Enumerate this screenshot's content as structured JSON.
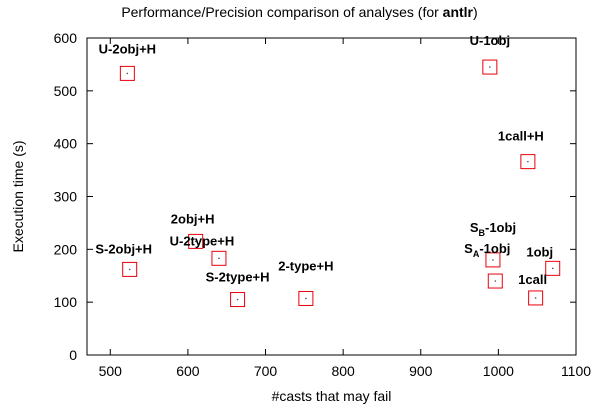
{
  "chart_data": {
    "type": "scatter",
    "title_prefix": "Performance/Precision comparison of analyses (for ",
    "title_bold": "antlr",
    "title_suffix": ")",
    "xlabel": "#casts that may fail",
    "ylabel": "Execution time (s)",
    "xlim": [
      470,
      1100
    ],
    "ylim": [
      0,
      600
    ],
    "xticks": [
      500,
      600,
      700,
      800,
      900,
      1000,
      1100
    ],
    "yticks": [
      0,
      100,
      200,
      300,
      400,
      500,
      600
    ],
    "grid": false,
    "marker_color": "#e8000b",
    "points": [
      {
        "label": "U-2obj+H",
        "x": 522,
        "y": 533
      },
      {
        "label": "S-2obj+H",
        "x": 525,
        "y": 162
      },
      {
        "label": "2obj+H",
        "x": 610,
        "y": 215
      },
      {
        "label": "U-2type+H",
        "x": 640,
        "y": 183
      },
      {
        "label": "S-2type+H",
        "x": 664,
        "y": 105
      },
      {
        "label": "2-type+H",
        "x": 752,
        "y": 107
      },
      {
        "label": "U-1obj",
        "x": 989,
        "y": 545
      },
      {
        "label": "1call+H",
        "x": 1038,
        "y": 366
      },
      {
        "label": "S",
        "sub": "B",
        "suffix": "-1obj",
        "x": 993,
        "y": 180
      },
      {
        "label": "S",
        "sub": "A",
        "suffix": "-1obj",
        "x": 996,
        "y": 140
      },
      {
        "label": "1obj",
        "x": 1070,
        "y": 164
      },
      {
        "label": "1call",
        "x": 1048,
        "y": 108
      }
    ]
  }
}
